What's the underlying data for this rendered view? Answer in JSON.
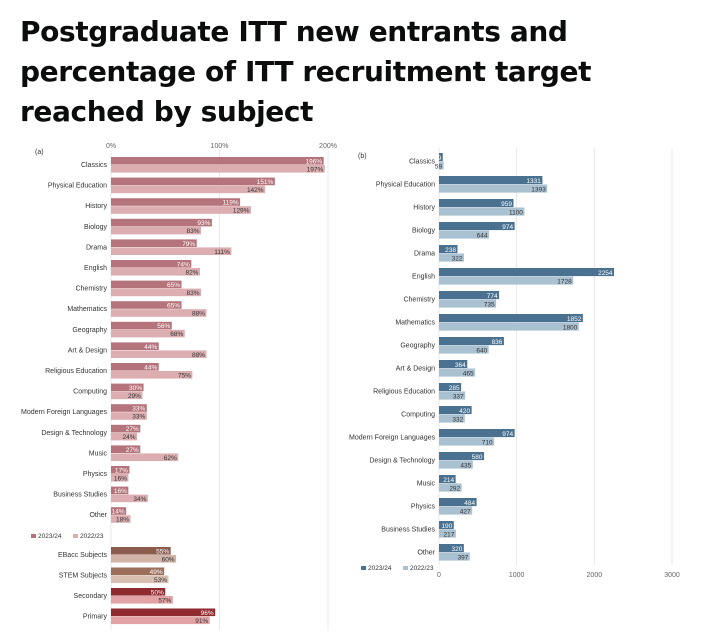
{
  "title": "Postgraduate ITT new entrants and percentage of ITT recruitment target reached by subject",
  "chart_data": [
    {
      "type": "bar",
      "orientation": "horizontal",
      "panel_label": "(a)",
      "axis_ticks": [
        "0%",
        "100%",
        "200%"
      ],
      "xlim": [
        0,
        200
      ],
      "categories": [
        "Classics",
        "Physical Education",
        "History",
        "Biology",
        "Drama",
        "English",
        "Chemistry",
        "Mathematics",
        "Geography",
        "Art & Design",
        "Religious Education",
        "Computing",
        "Modern Foreign Languages",
        "Design & Technology",
        "Music",
        "Physics",
        "Business Studies",
        "Other"
      ],
      "series": [
        {
          "name": "2023/24",
          "color": "#b5747b",
          "values": [
            196,
            151,
            119,
            93,
            79,
            74,
            65,
            65,
            56,
            44,
            44,
            30,
            33,
            27,
            27,
            17,
            16,
            14
          ],
          "labels": [
            "196%",
            "151%",
            "119%",
            "93%",
            "79%",
            "74%",
            "65%",
            "65%",
            "56%",
            "44%",
            "44%",
            "30%",
            "33%",
            "27%",
            "27%",
            "17%",
            "16%",
            "14%"
          ]
        },
        {
          "name": "2022/23",
          "color": "#dcaeb1",
          "values": [
            197,
            142,
            129,
            83,
            111,
            82,
            83,
            88,
            68,
            88,
            75,
            29,
            33,
            24,
            62,
            16,
            34,
            18
          ],
          "labels": [
            "197%",
            "142%",
            "129%",
            "83%",
            "111%",
            "82%",
            "83%",
            "88%",
            "68%",
            "88%",
            "75%",
            "29%",
            "33%",
            "24%",
            "62%",
            "16%",
            "34%",
            "18%"
          ]
        }
      ],
      "legend": [
        "2023/24",
        "2022/23"
      ],
      "groups": [
        {
          "name": "EBacc Subjects",
          "values": [
            55,
            60
          ],
          "labels": [
            "55%",
            "60%"
          ],
          "colors": [
            "#8b5c4e",
            "#d2b3a8"
          ]
        },
        {
          "name": "STEM Subjects",
          "values": [
            49,
            53
          ],
          "labels": [
            "49%",
            "53%"
          ],
          "colors": [
            "#9b6f5a",
            "#d8bfb1"
          ]
        },
        {
          "name": "Secondary",
          "values": [
            50,
            57
          ],
          "labels": [
            "50%",
            "57%"
          ],
          "colors": [
            "#8e2a30",
            "#e3a3a6"
          ]
        },
        {
          "name": "Primary",
          "values": [
            96,
            91
          ],
          "labels": [
            "96%",
            "91%"
          ],
          "colors": [
            "#8e2a30",
            "#e3a3a6"
          ]
        }
      ]
    },
    {
      "type": "bar",
      "orientation": "horizontal",
      "panel_label": "(b)",
      "axis_ticks": [
        "0",
        "1000",
        "2000",
        "3000"
      ],
      "xlim": [
        0,
        3000
      ],
      "categories": [
        "Classics",
        "Physical Education",
        "History",
        "Biology",
        "Drama",
        "English",
        "Chemistry",
        "Mathematics",
        "Geography",
        "Art & Design",
        "Religious Education",
        "Computing",
        "Modern Foreign Languages",
        "Design & Technology",
        "Music",
        "Physics",
        "Business Studies",
        "Other"
      ],
      "series": [
        {
          "name": "2023/24",
          "color": "#4a7290",
          "values": [
            49,
            1331,
            959,
            974,
            238,
            2254,
            774,
            1852,
            836,
            364,
            285,
            420,
            974,
            580,
            214,
            484,
            190,
            320
          ],
          "labels": [
            "49",
            "1331",
            "959",
            "974",
            "238",
            "2254",
            "774",
            "1852",
            "836",
            "364",
            "285",
            "420",
            "974",
            "580",
            "214",
            "484",
            "190",
            "320"
          ]
        },
        {
          "name": "2022/23",
          "color": "#aac1d2",
          "values": [
            59,
            1393,
            1100,
            644,
            322,
            1728,
            735,
            1800,
            640,
            465,
            337,
            332,
            710,
            435,
            292,
            427,
            217,
            397
          ],
          "labels": [
            "59",
            "1393",
            "1100",
            "644",
            "322",
            "1728",
            "735",
            "1800",
            "640",
            "465",
            "337",
            "332",
            "710",
            "435",
            "292",
            "427",
            "217",
            "397"
          ]
        }
      ],
      "legend": [
        "2023/24",
        "2022/23"
      ]
    }
  ]
}
